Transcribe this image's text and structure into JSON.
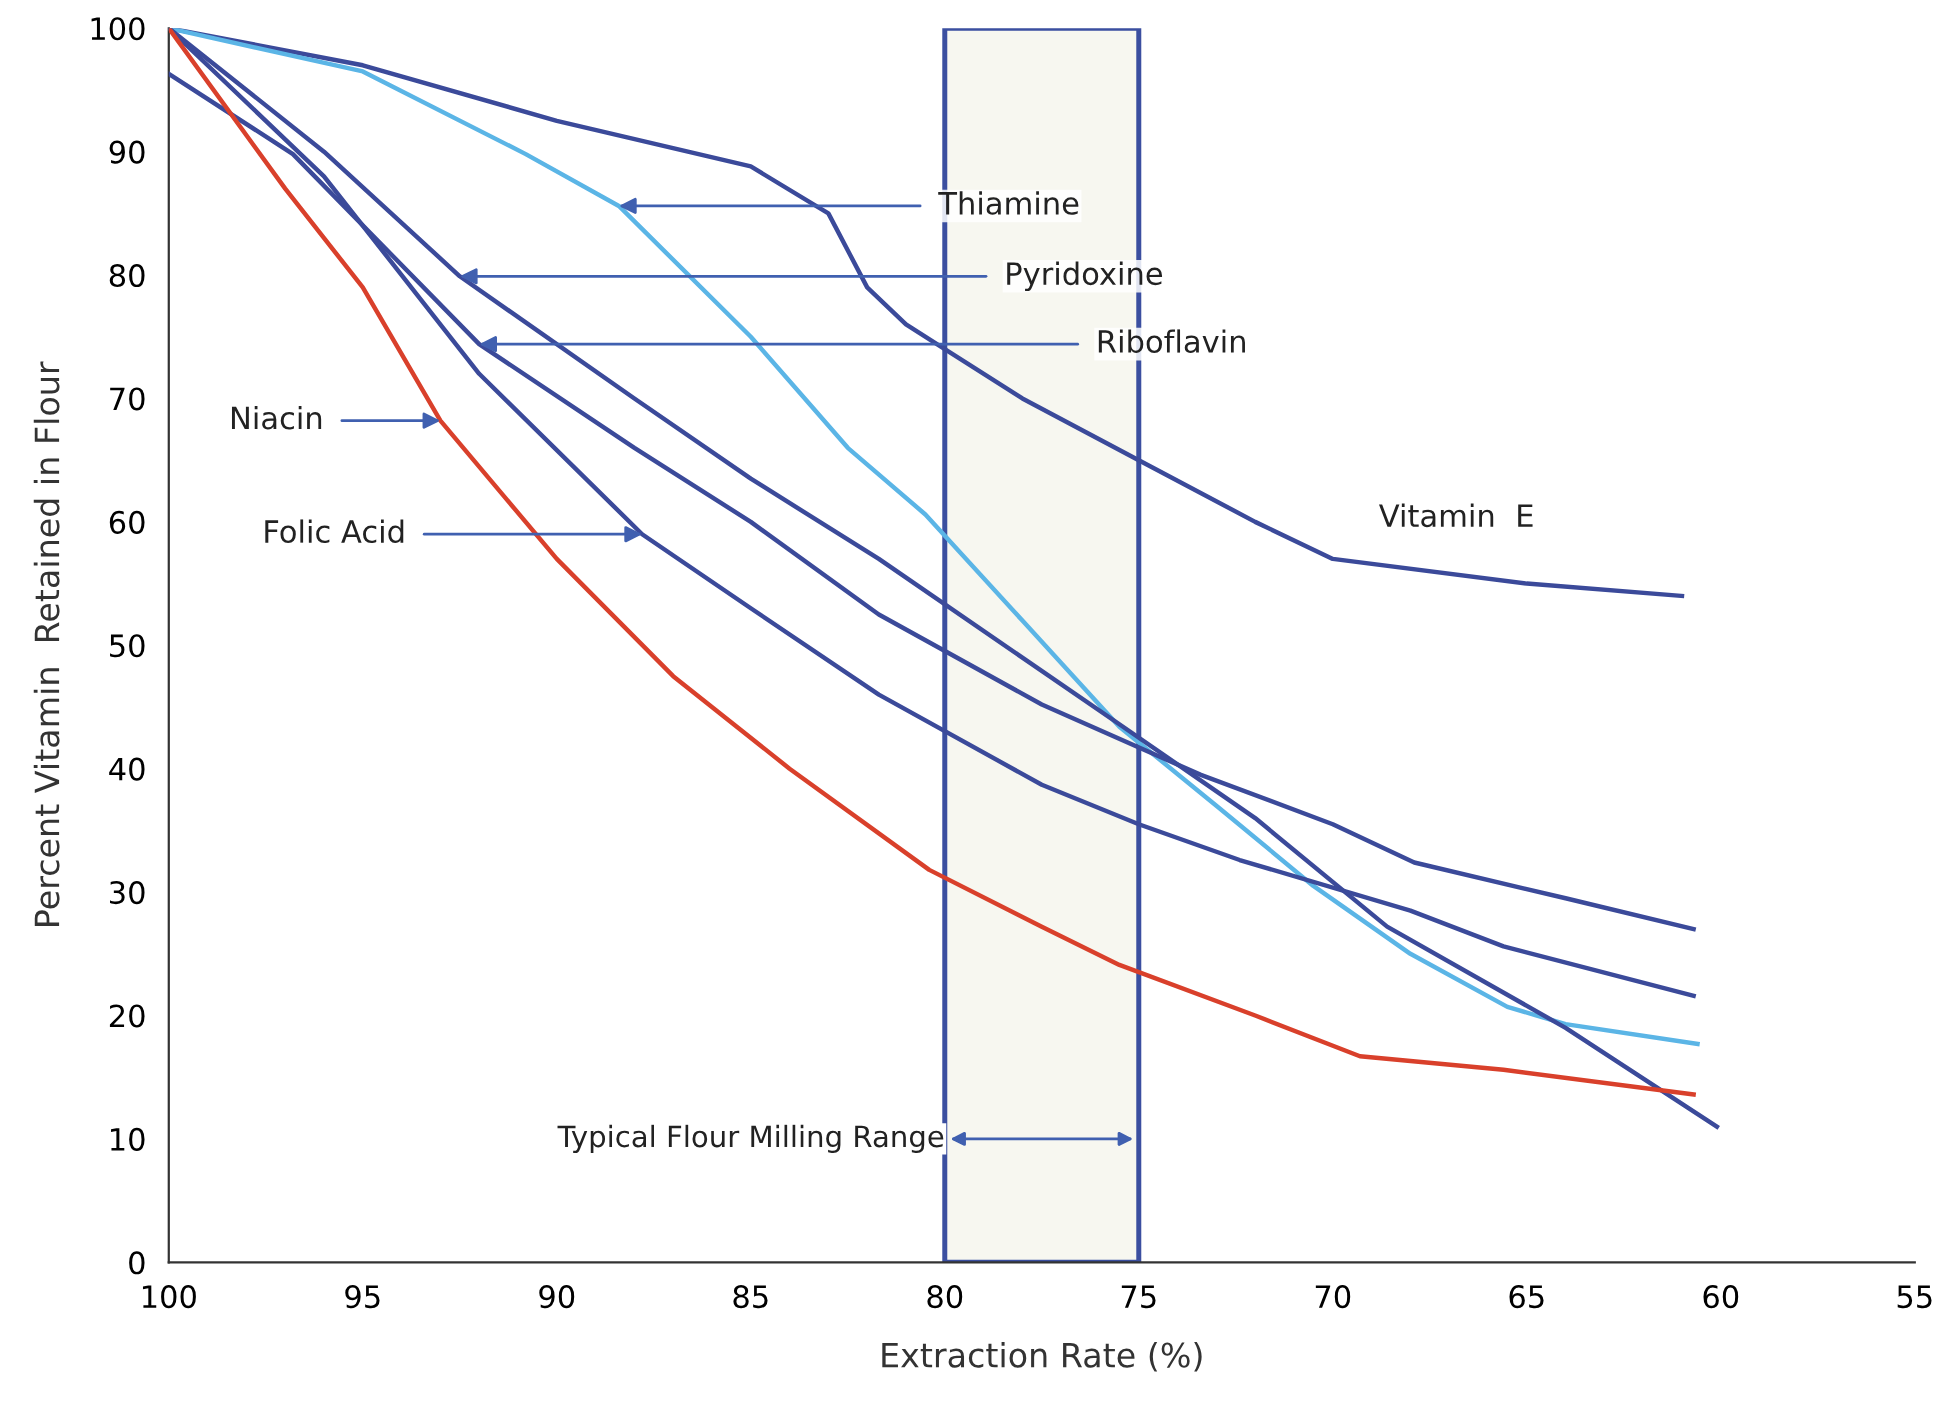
{
  "chart_data": {
    "type": "line",
    "xlabel": "Extraction Rate (%)",
    "ylabel": "Percent Vitamin  Retained in Flour",
    "xlim": [
      100,
      55
    ],
    "ylim": [
      0,
      100
    ],
    "xticks": [
      100,
      95,
      90,
      85,
      80,
      75,
      70,
      65,
      60,
      55
    ],
    "yticks": [
      0,
      10,
      20,
      30,
      40,
      50,
      60,
      70,
      80,
      90,
      100
    ],
    "grid": false,
    "legend": false,
    "line_style": "solid",
    "marker": "none",
    "series": [
      {
        "color": "#3b4a9a",
        "x": [
          100,
          95,
          90,
          85,
          83,
          82,
          81,
          80,
          78,
          75,
          72,
          70,
          65,
          61
        ],
        "values": [
          100,
          97,
          92.5,
          88.8,
          85,
          79,
          76,
          74,
          70,
          65,
          60,
          57,
          55,
          54
        ]
      },
      {
        "color": "#5bb5e6",
        "x": [
          100,
          95,
          90.8,
          88.4,
          85,
          82.5,
          80.5,
          78,
          75.5,
          73,
          70.5,
          68,
          65.5,
          64,
          60.6
        ],
        "values": [
          100,
          96.5,
          89.8,
          85.6,
          75,
          66,
          60.6,
          52,
          43.4,
          37,
          30.5,
          25,
          20.7,
          19.3,
          17.7
        ]
      },
      {
        "color": "#3b4a9a",
        "x": [
          100,
          96,
          92.5,
          88,
          85,
          81.7,
          78,
          75.5,
          72,
          68.6,
          64,
          60.1
        ],
        "values": [
          100,
          90,
          79.9,
          70,
          63.5,
          57,
          49,
          43.6,
          36,
          27.2,
          19,
          11
        ]
      },
      {
        "color": "#3b4a9a",
        "x": [
          100,
          96.8,
          92,
          88,
          85,
          81.7,
          77.5,
          73.4,
          70,
          67.9,
          64,
          60.7
        ],
        "values": [
          96.3,
          89.8,
          74.4,
          66,
          60,
          52.5,
          45.2,
          39.5,
          35.5,
          32.4,
          29.5,
          27
        ]
      },
      {
        "color": "#3b4a9a",
        "x": [
          100,
          96,
          92,
          87.8,
          85,
          81.7,
          77.5,
          75,
          72.4,
          68,
          65.6,
          60.7
        ],
        "values": [
          100,
          88,
          72,
          59,
          53,
          46,
          38.7,
          35.5,
          32.6,
          28.5,
          25.6,
          21.6
        ]
      },
      {
        "color": "#d9402b",
        "x": [
          100,
          97,
          95,
          93,
          90,
          87,
          84,
          80.4,
          77.5,
          75.5,
          72,
          69.3,
          65.6,
          60.7
        ],
        "values": [
          100,
          87,
          79,
          68.2,
          57,
          47.5,
          40,
          31.8,
          27.2,
          24.1,
          20,
          16.7,
          15.6,
          13.6
        ]
      }
    ],
    "bands": [
      {
        "axis": "x",
        "from": 80,
        "to": 75,
        "label": "Typical Flour Milling Range",
        "color": "#f7f7f0"
      }
    ],
    "annotations": [
      {
        "text": "Thiamine",
        "x": 88.4,
        "y": 85.6
      },
      {
        "text": "Pyridoxine",
        "x": 92.5,
        "y": 79.9
      },
      {
        "text": "Riboflavin",
        "x": 92,
        "y": 74.4
      },
      {
        "text": "Niacin",
        "x": 93,
        "y": 68.2
      },
      {
        "text": "Folic Acid",
        "x": 87.8,
        "y": 59
      },
      "Vitamin  E"
    ]
  }
}
